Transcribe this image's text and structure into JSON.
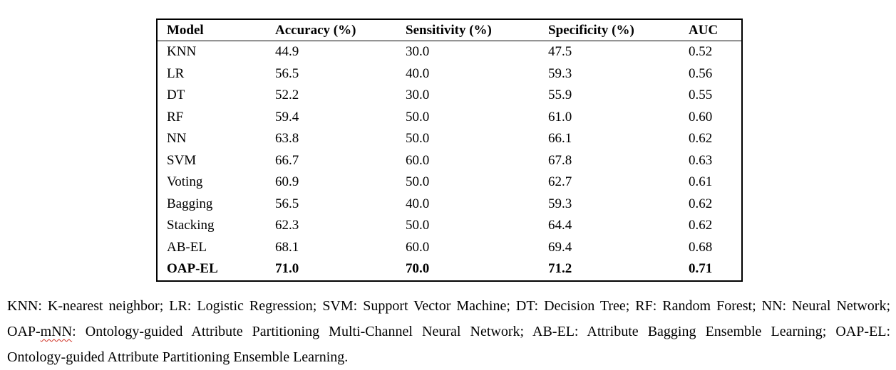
{
  "page": {
    "background": "#ffffff",
    "text_color": "#000000"
  },
  "table": {
    "columns": [
      "Model",
      "Accuracy (%)",
      "Sensitivity (%)",
      "Specificity (%)",
      "AUC"
    ],
    "rows": [
      {
        "cells": [
          "KNN",
          "44.9",
          "30.0",
          "47.5",
          "0.52"
        ],
        "bold": false
      },
      {
        "cells": [
          "LR",
          "56.5",
          "40.0",
          "59.3",
          "0.56"
        ],
        "bold": false
      },
      {
        "cells": [
          "DT",
          "52.2",
          "30.0",
          "55.9",
          "0.55"
        ],
        "bold": false
      },
      {
        "cells": [
          "RF",
          "59.4",
          "50.0",
          "61.0",
          "0.60"
        ],
        "bold": false
      },
      {
        "cells": [
          "NN",
          "63.8",
          "50.0",
          "66.1",
          "0.62"
        ],
        "bold": false
      },
      {
        "cells": [
          "SVM",
          "66.7",
          "60.0",
          "67.8",
          "0.63"
        ],
        "bold": false
      },
      {
        "cells": [
          "Voting",
          "60.9",
          "50.0",
          "62.7",
          "0.61"
        ],
        "bold": false
      },
      {
        "cells": [
          "Bagging",
          "56.5",
          "40.0",
          "59.3",
          "0.62"
        ],
        "bold": false
      },
      {
        "cells": [
          "Stacking",
          "62.3",
          "50.0",
          "64.4",
          "0.62"
        ],
        "bold": false
      },
      {
        "cells": [
          "AB-EL",
          "68.1",
          "60.0",
          "69.4",
          "0.68"
        ],
        "bold": false
      },
      {
        "cells": [
          "OAP-EL",
          "71.0",
          "70.0",
          "71.2",
          "0.71"
        ],
        "bold": true
      }
    ]
  },
  "footnote": {
    "line1": "KNN: K-nearest neighbor; LR: Logistic Regression; SVM: Support Vector Machine; DT: Decision Tree; RF: Random Forest; NN: Neural Network;",
    "line2_prefix": "OAP-",
    "line2_misspelled": "mNN",
    "line2_rest": ": Ontology-guided Attribute Partitioning Multi-Channel Neural Network; AB-EL: Attribute Bagging Ensemble Learning; OAP-EL:",
    "line3": "Ontology-guided Attribute Partitioning Ensemble Learning.",
    "squiggle_color": "#cf2e21"
  }
}
